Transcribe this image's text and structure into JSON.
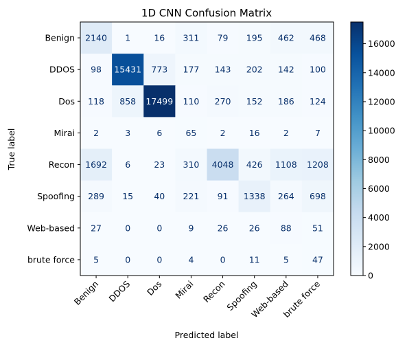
{
  "chart_data": {
    "type": "heatmap",
    "title": "1D CNN Confusion Matrix",
    "xlabel": "Predicted label",
    "ylabel": "True label",
    "labels": [
      "Benign",
      "DDOS",
      "Dos",
      "Mirai",
      "Recon",
      "Spoofing",
      "Web-based",
      "brute force"
    ],
    "matrix": [
      [
        2140,
        1,
        16,
        311,
        79,
        195,
        462,
        468
      ],
      [
        98,
        15431,
        773,
        177,
        143,
        202,
        142,
        100
      ],
      [
        118,
        858,
        17499,
        110,
        270,
        152,
        186,
        124
      ],
      [
        2,
        3,
        6,
        65,
        2,
        16,
        2,
        7
      ],
      [
        1692,
        6,
        23,
        310,
        4048,
        426,
        1108,
        1208
      ],
      [
        289,
        15,
        40,
        221,
        91,
        1338,
        264,
        698
      ],
      [
        27,
        0,
        0,
        9,
        26,
        26,
        88,
        51
      ],
      [
        5,
        0,
        0,
        4,
        0,
        11,
        5,
        47
      ]
    ],
    "colormap": "Blues",
    "vmin": 0,
    "vmax": 17499,
    "colorbar_ticks": [
      0,
      2000,
      4000,
      6000,
      8000,
      10000,
      12000,
      14000,
      16000
    ]
  }
}
